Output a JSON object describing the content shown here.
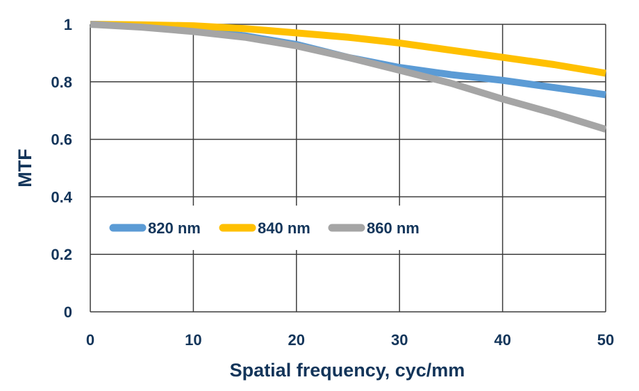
{
  "chart_data": {
    "type": "line",
    "xlabel": "Spatial frequency, cyc/mm",
    "ylabel": "MTF",
    "xlim": [
      0,
      50
    ],
    "ylim": [
      0,
      1
    ],
    "x_ticks": [
      0,
      10,
      20,
      30,
      40,
      50
    ],
    "y_ticks": [
      0,
      0.2,
      0.4,
      0.6,
      0.8,
      1
    ],
    "x_tick_labels": [
      "0",
      "10",
      "20",
      "30",
      "40",
      "50"
    ],
    "y_tick_labels": [
      "0",
      "0.2",
      "0.4",
      "0.6",
      "0.8",
      "1"
    ],
    "grid": true,
    "legend_position": "center-left",
    "x": [
      0,
      5,
      10,
      15,
      20,
      25,
      30,
      35,
      40,
      45,
      50
    ],
    "series": [
      {
        "name": "820 nm",
        "color": "#5b9bd5",
        "values": [
          1.0,
          0.995,
          0.98,
          0.96,
          0.93,
          0.885,
          0.85,
          0.825,
          0.805,
          0.78,
          0.755
        ]
      },
      {
        "name": "840 nm",
        "color": "#ffc000",
        "values": [
          1.0,
          0.998,
          0.995,
          0.985,
          0.97,
          0.955,
          0.935,
          0.91,
          0.885,
          0.86,
          0.83
        ]
      },
      {
        "name": "860 nm",
        "color": "#a5a5a5",
        "values": [
          1.0,
          0.99,
          0.975,
          0.955,
          0.925,
          0.885,
          0.84,
          0.795,
          0.74,
          0.69,
          0.635
        ]
      }
    ]
  },
  "colors": {
    "text": "#13355a",
    "grid": "#3c3c3c",
    "plot_background": "#ffffff"
  }
}
